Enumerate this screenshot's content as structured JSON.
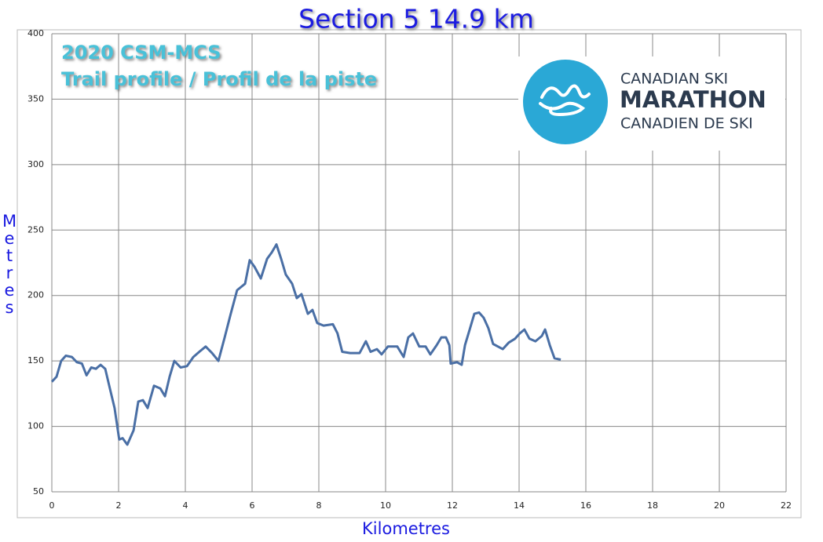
{
  "chart_data": {
    "type": "line",
    "title": "Section 5  14.9 km",
    "xlabel": "Kilometres",
    "ylabel": "Metres",
    "annotations": [
      "2020 CSM-MCS",
      "Trail profile / Profil de la piste"
    ],
    "logo_text": [
      "CANADIAN SKI",
      "MARATHON",
      "CANADIEN DE SKI"
    ],
    "x": [
      0,
      0.14,
      0.28,
      0.42,
      0.6,
      0.75,
      0.9,
      1.04,
      1.18,
      1.32,
      1.46,
      1.6,
      1.74,
      1.88,
      2.02,
      2.12,
      2.26,
      2.45,
      2.59,
      2.73,
      2.87,
      3.06,
      3.25,
      3.39,
      3.53,
      3.67,
      3.86,
      4.05,
      4.24,
      4.42,
      4.61,
      4.8,
      4.99,
      5.18,
      5.36,
      5.55,
      5.79,
      5.93,
      6.07,
      6.26,
      6.45,
      6.59,
      6.73,
      6.87,
      7.01,
      7.2,
      7.34,
      7.48,
      7.67,
      7.81,
      7.95,
      8.14,
      8.42,
      8.56,
      8.7,
      8.94,
      9.22,
      9.41,
      9.55,
      9.74,
      9.88,
      10.07,
      10.35,
      10.54,
      10.68,
      10.82,
      11.01,
      11.2,
      11.34,
      11.53,
      11.67,
      11.81,
      11.91,
      11.95,
      12.14,
      12.28,
      12.38,
      12.52,
      12.66,
      12.8,
      12.94,
      13.08,
      13.22,
      13.51,
      13.69,
      13.88,
      14.02,
      14.16,
      14.31,
      14.49,
      14.68,
      14.78,
      14.92,
      15.06,
      15.25
    ],
    "series": [
      {
        "color": "#4a6fa5",
        "values": [
          134,
          138,
          150,
          154,
          153,
          149,
          148,
          139,
          145,
          144,
          147,
          144,
          129,
          114,
          90,
          91,
          86,
          97,
          119,
          120,
          114,
          131,
          129,
          123,
          138,
          150,
          145,
          146,
          153,
          157,
          161,
          156,
          150,
          168,
          186,
          204,
          209,
          227,
          222,
          213,
          228,
          233,
          239,
          228,
          216,
          209,
          198,
          201,
          186,
          189,
          179,
          177,
          178,
          171,
          157,
          156,
          156,
          165,
          157,
          159,
          155,
          161,
          161,
          153,
          168,
          171,
          161,
          161,
          155,
          162,
          168,
          168,
          162,
          148,
          149,
          147,
          162,
          174,
          186,
          187,
          183,
          175,
          163,
          159,
          164,
          167,
          171,
          174,
          167,
          165,
          169,
          174,
          162,
          152,
          151
        ]
      }
    ],
    "xlim": [
      0,
      22
    ],
    "xticks": [
      0,
      2,
      4,
      6,
      8,
      10,
      12,
      14,
      16,
      18,
      20,
      22
    ],
    "ylim": [
      50,
      400
    ],
    "yticks": [
      50,
      100,
      150,
      200,
      250,
      300,
      350,
      400
    ],
    "grid": true
  }
}
